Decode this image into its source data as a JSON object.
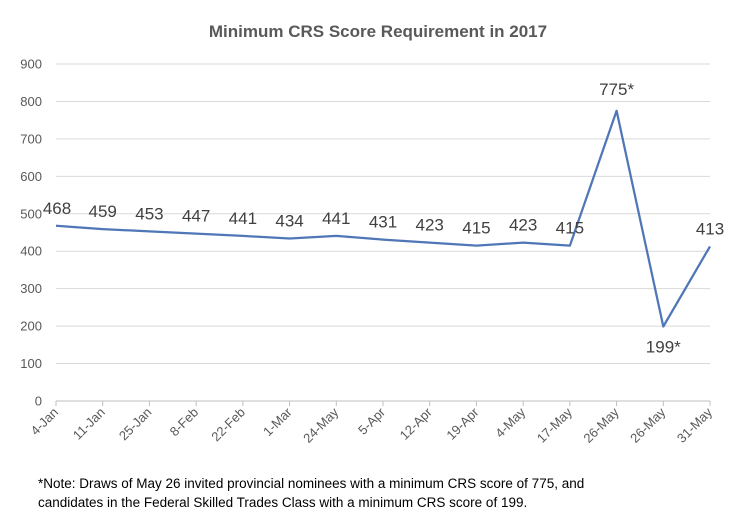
{
  "chart_data": {
    "type": "line",
    "title": "Minimum CRS Score Requirement in 2017",
    "categories": [
      "4-Jan",
      "11-Jan",
      "25-Jan",
      "8-Feb",
      "22-Feb",
      "1-Mar",
      "24-May",
      "5-Apr",
      "12-Apr",
      "19-Apr",
      "4-May",
      "17-May",
      "26-May",
      "26-May",
      "31-May"
    ],
    "series": [
      {
        "values": [
          468,
          459,
          453,
          447,
          441,
          434,
          441,
          431,
          423,
          415,
          423,
          415,
          775,
          199,
          413
        ],
        "data_labels": [
          "468",
          "459",
          "453",
          "447",
          "441",
          "434",
          "441",
          "431",
          "423",
          "415",
          "423",
          "415",
          "775*",
          "199*",
          "413"
        ],
        "color": "#4f76b6"
      }
    ],
    "y_ticks": [
      "0",
      "100",
      "200",
      "300",
      "400",
      "500",
      "600",
      "700",
      "800",
      "900"
    ],
    "ylim": [
      0,
      900
    ],
    "grid": true,
    "legend": "none"
  },
  "footnote": {
    "line1": "*Note: Draws of May 26 invited provincial nominees with a minimum CRS score of 775, and",
    "line2": "candidates in the Federal Skilled Trades Class with a minimum CRS score of 199."
  }
}
